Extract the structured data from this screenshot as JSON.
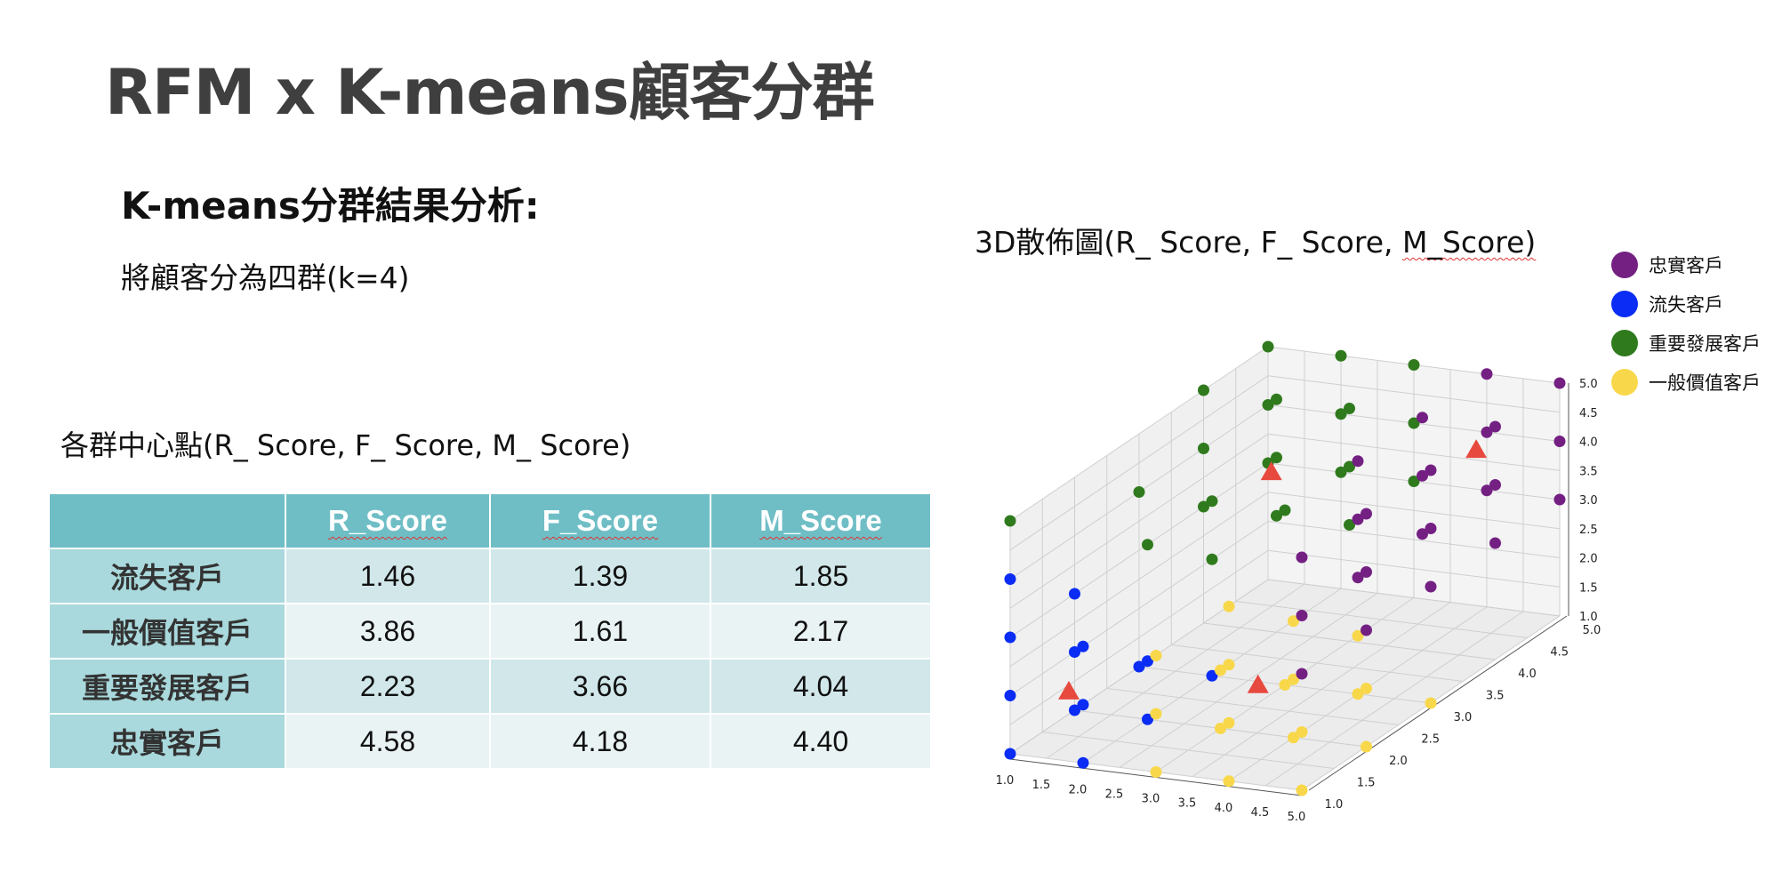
{
  "slide": {
    "title": "RFM x K-means顧客分群",
    "subtitle": "K-means分群結果分析:",
    "description": "將顧客分為四群(k=4)"
  },
  "table": {
    "caption": "各群中心點(R_ Score, F_ Score, M_ Score)",
    "headers": [
      "",
      "R_Score",
      "F_Score",
      "M_Score"
    ],
    "rows": [
      {
        "name": "流失客戶",
        "values": [
          "1.46",
          "1.39",
          "1.85"
        ]
      },
      {
        "name": "一般價值客戶",
        "values": [
          "3.86",
          "1.61",
          "2.17"
        ]
      },
      {
        "name": "重要發展客戶",
        "values": [
          "2.23",
          "3.66",
          "4.04"
        ]
      },
      {
        "name": "忠實客戶",
        "values": [
          "4.58",
          "4.18",
          "4.40"
        ]
      }
    ]
  },
  "chart_caption": {
    "prefix": "3D散佈圖(R_ Score, F_ Score, ",
    "suffix": "M_Score)"
  },
  "legend": [
    {
      "label": "忠實客戶",
      "color": "#742083"
    },
    {
      "label": "流失客戶",
      "color": "#0a2cf5"
    },
    {
      "label": "重要發展客戶",
      "color": "#2f7a1d"
    },
    {
      "label": "一般價值客戶",
      "color": "#f8d84a"
    }
  ],
  "chart_data": {
    "type": "scatter",
    "title": "",
    "axes": {
      "x": {
        "label": "",
        "range": [
          1.0,
          5.0
        ],
        "ticks": [
          "1.0",
          "1.5",
          "2.0",
          "2.5",
          "3.0",
          "3.5",
          "4.0",
          "4.5",
          "5.0"
        ]
      },
      "y": {
        "label": "",
        "range": [
          1.0,
          5.0
        ],
        "ticks": [
          "1.0",
          "1.5",
          "2.0",
          "2.5",
          "3.0",
          "3.5",
          "4.0",
          "4.5",
          "5.0"
        ]
      },
      "z": {
        "label": "",
        "range": [
          1.0,
          5.0
        ],
        "ticks": [
          "1.0",
          "1.5",
          "2.0",
          "2.5",
          "3.0",
          "3.5",
          "4.0",
          "4.5",
          "5.0"
        ]
      }
    },
    "grid": true,
    "legend_position": "top-right",
    "series": [
      {
        "name": "流失客戶",
        "color": "#0a2cf5",
        "marker": "circle",
        "points": [
          [
            1,
            1,
            1
          ],
          [
            1,
            1,
            2
          ],
          [
            1,
            1,
            3
          ],
          [
            1,
            2,
            1
          ],
          [
            1,
            2,
            2
          ],
          [
            1,
            2,
            3
          ],
          [
            2,
            1,
            1
          ],
          [
            2,
            1,
            2
          ],
          [
            2,
            1,
            3
          ],
          [
            2,
            2,
            1
          ],
          [
            2,
            2,
            2
          ],
          [
            1,
            3,
            1
          ],
          [
            2,
            3,
            1
          ],
          [
            1,
            1,
            4
          ]
        ]
      },
      {
        "name": "一般價值客戶",
        "color": "#f8d84a",
        "marker": "circle",
        "points": [
          [
            3,
            1,
            1
          ],
          [
            3,
            1,
            2
          ],
          [
            3,
            2,
            1
          ],
          [
            3,
            2,
            2
          ],
          [
            4,
            1,
            1
          ],
          [
            4,
            1,
            2
          ],
          [
            4,
            1,
            3
          ],
          [
            4,
            2,
            1
          ],
          [
            4,
            2,
            2
          ],
          [
            4,
            2,
            3
          ],
          [
            5,
            1,
            1
          ],
          [
            5,
            1,
            2
          ],
          [
            5,
            2,
            1
          ],
          [
            5,
            2,
            2
          ],
          [
            3,
            1,
            3
          ],
          [
            4,
            3,
            1
          ],
          [
            4,
            3,
            2
          ],
          [
            5,
            3,
            1
          ],
          [
            4,
            1,
            4
          ],
          [
            3,
            3,
            1
          ]
        ]
      },
      {
        "name": "重要發展客戶",
        "color": "#2f7a1d",
        "marker": "circle",
        "points": [
          [
            1,
            4,
            3
          ],
          [
            1,
            4,
            4
          ],
          [
            1,
            4,
            5
          ],
          [
            1,
            5,
            3
          ],
          [
            1,
            5,
            4
          ],
          [
            1,
            5,
            5
          ],
          [
            2,
            4,
            3
          ],
          [
            2,
            4,
            4
          ],
          [
            2,
            4,
            5
          ],
          [
            2,
            5,
            3
          ],
          [
            2,
            5,
            4
          ],
          [
            2,
            5,
            5
          ],
          [
            3,
            4,
            3
          ],
          [
            3,
            4,
            4
          ],
          [
            3,
            4,
            5
          ],
          [
            3,
            5,
            3
          ],
          [
            3,
            5,
            4
          ],
          [
            3,
            5,
            5
          ],
          [
            1,
            3,
            4
          ],
          [
            2,
            3,
            4
          ],
          [
            1,
            1,
            5
          ],
          [
            2,
            2,
            4
          ],
          [
            3,
            3,
            4
          ],
          [
            2,
            3,
            3
          ]
        ]
      },
      {
        "name": "忠實客戶",
        "color": "#742083",
        "marker": "circle",
        "points": [
          [
            4,
            4,
            3
          ],
          [
            4,
            4,
            4
          ],
          [
            4,
            4,
            5
          ],
          [
            4,
            5,
            3
          ],
          [
            4,
            5,
            4
          ],
          [
            4,
            5,
            5
          ],
          [
            5,
            4,
            3
          ],
          [
            5,
            4,
            4
          ],
          [
            5,
            4,
            5
          ],
          [
            5,
            5,
            3
          ],
          [
            5,
            5,
            4
          ],
          [
            5,
            5,
            5
          ],
          [
            4,
            3,
            4
          ],
          [
            5,
            3,
            4
          ],
          [
            4,
            3,
            5
          ],
          [
            5,
            3,
            5
          ],
          [
            5,
            3,
            3
          ],
          [
            4,
            3,
            3
          ],
          [
            5,
            2,
            3
          ],
          [
            5,
            2,
            4
          ],
          [
            5,
            1,
            3
          ],
          [
            5,
            1,
            4
          ],
          [
            5,
            1,
            5
          ],
          [
            5,
            2,
            5
          ]
        ]
      }
    ],
    "centroids": {
      "marker": "triangle",
      "color": "#e8493f",
      "points": [
        [
          1.46,
          1.39,
          1.85
        ],
        [
          3.86,
          1.61,
          2.17
        ],
        [
          2.23,
          3.66,
          4.04
        ],
        [
          4.58,
          4.18,
          4.4
        ]
      ]
    }
  }
}
